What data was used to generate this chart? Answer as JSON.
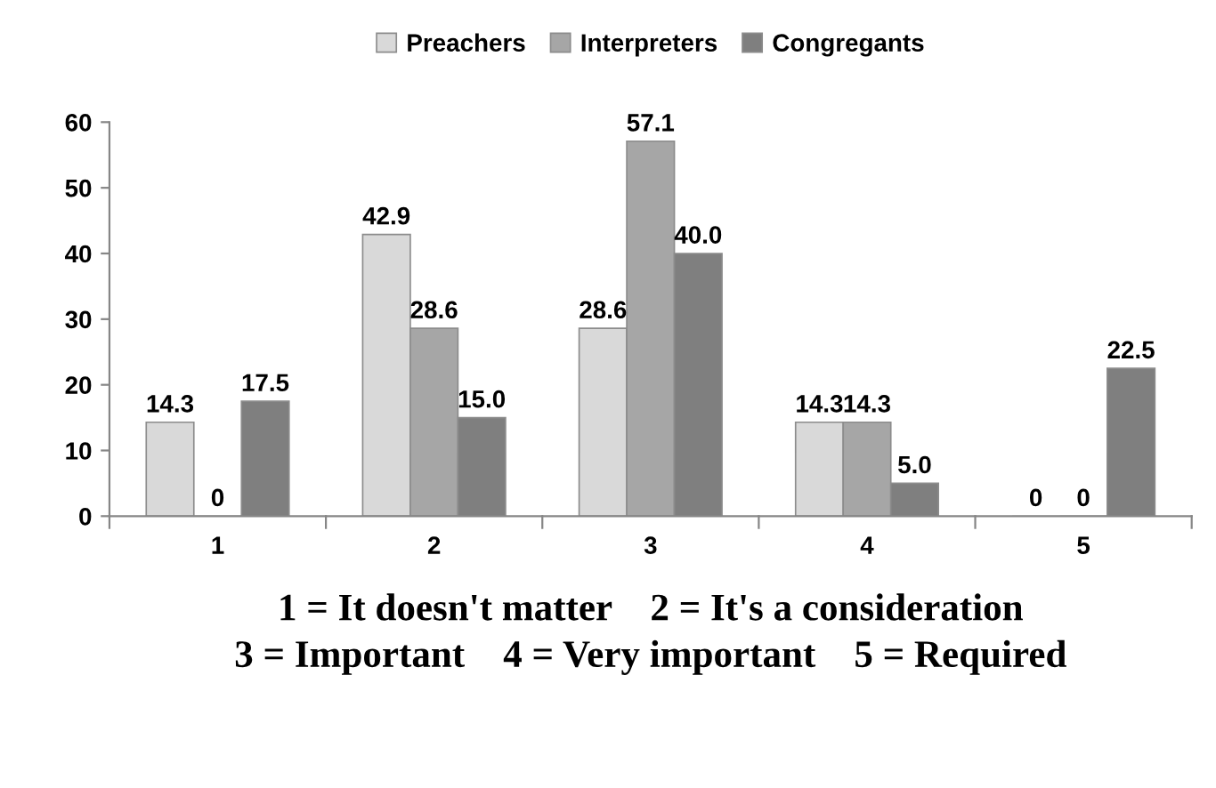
{
  "chart_data": {
    "type": "bar",
    "categories": [
      "1",
      "2",
      "3",
      "4",
      "5"
    ],
    "series": [
      {
        "name": "Preachers",
        "color": "#d9d9d9",
        "values": [
          14.3,
          42.9,
          28.6,
          14.3,
          0
        ],
        "value_labels": [
          "14.3",
          "42.9",
          "28.6",
          "14.3",
          "0"
        ]
      },
      {
        "name": "Interpreters",
        "color": "#a6a6a6",
        "values": [
          0,
          28.6,
          57.1,
          14.3,
          0
        ],
        "value_labels": [
          "0",
          "28.6",
          "57.1",
          "14.3",
          "0"
        ]
      },
      {
        "name": "Congregants",
        "color": "#7f7f7f",
        "values": [
          17.5,
          15.0,
          40.0,
          5.0,
          22.5
        ],
        "value_labels": [
          "17.5",
          "15.0",
          "40.0",
          "5.0",
          "22.5"
        ]
      }
    ],
    "xlabel": "1 = It doesn't matter    2 = It's a consideration\n3 = Important    4 = Very important    5 = Required",
    "ylim": [
      0,
      60
    ],
    "yticks": [
      0,
      10,
      20,
      30,
      40,
      50,
      60
    ],
    "legend": "top",
    "grid": false
  }
}
